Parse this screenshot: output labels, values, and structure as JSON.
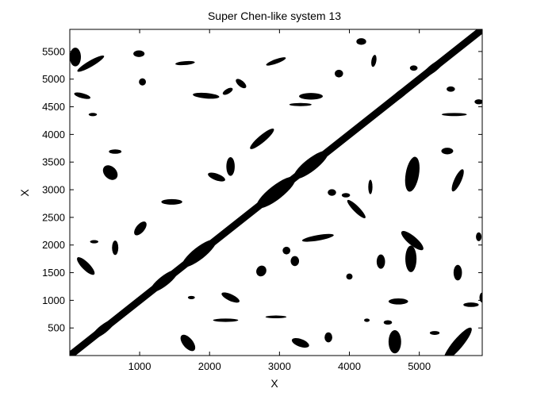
{
  "chart_data": {
    "type": "recurrence-plot",
    "title": "Super Chen-like system 13",
    "xlabel": "X",
    "ylabel": "X",
    "xlim": [
      1,
      5900
    ],
    "ylim": [
      1,
      5900
    ],
    "xticks": [
      1000,
      2000,
      3000,
      4000,
      5000
    ],
    "yticks": [
      500,
      1000,
      1500,
      2000,
      2500,
      3000,
      3500,
      4000,
      4500,
      5000,
      5500
    ],
    "colors": {
      "background": "#ffffff",
      "recurrence": "#000000",
      "axes": "#000000"
    },
    "diagonal_nodes": [
      [
        0,
        0,
        55
      ],
      [
        480,
        480,
        140
      ],
      [
        1350,
        1350,
        165
      ],
      [
        1850,
        1850,
        200
      ],
      [
        2950,
        2950,
        230
      ],
      [
        3450,
        3450,
        205
      ],
      [
        4200,
        4200,
        95
      ],
      [
        4480,
        4480,
        85
      ],
      [
        4720,
        4720,
        120
      ],
      [
        5200,
        5200,
        130
      ],
      [
        5800,
        5800,
        70
      ]
    ],
    "blobs": [
      [
        300,
        5280,
        220,
        55,
        -30
      ],
      [
        80,
        5400,
        80,
        170,
        0
      ],
      [
        180,
        4700,
        120,
        45,
        15
      ],
      [
        990,
        5460,
        80,
        60,
        0
      ],
      [
        1040,
        4950,
        50,
        65,
        0
      ],
      [
        1650,
        5290,
        140,
        35,
        -5
      ],
      [
        1950,
        4700,
        190,
        50,
        5
      ],
      [
        2450,
        4920,
        90,
        55,
        40
      ],
      [
        2260,
        4780,
        80,
        45,
        -30
      ],
      [
        2950,
        5320,
        150,
        40,
        -20
      ],
      [
        3450,
        4690,
        170,
        60,
        0
      ],
      [
        3300,
        4540,
        160,
        28,
        0
      ],
      [
        2750,
        3920,
        220,
        65,
        -40
      ],
      [
        4170,
        5680,
        70,
        60,
        0
      ],
      [
        4350,
        5330,
        35,
        110,
        10
      ],
      [
        3850,
        5100,
        60,
        70,
        0
      ],
      [
        4920,
        5200,
        55,
        48,
        0
      ],
      [
        5450,
        4820,
        60,
        48,
        0
      ],
      [
        5850,
        4590,
        60,
        45,
        0
      ],
      [
        5500,
        4360,
        180,
        28,
        0
      ],
      [
        5400,
        3700,
        85,
        60,
        0
      ],
      [
        4900,
        3280,
        95,
        320,
        10
      ],
      [
        5550,
        3170,
        50,
        220,
        25
      ],
      [
        4300,
        3050,
        30,
        130,
        0
      ],
      [
        3750,
        2950,
        60,
        60,
        0
      ],
      [
        4100,
        2650,
        180,
        55,
        45
      ],
      [
        3950,
        2900,
        60,
        40,
        0
      ],
      [
        3550,
        2130,
        230,
        50,
        -10
      ],
      [
        3100,
        1900,
        55,
        70,
        0
      ],
      [
        3220,
        1710,
        60,
        90,
        0
      ],
      [
        2740,
        1530,
        70,
        100,
        30
      ],
      [
        4450,
        1700,
        60,
        130,
        0
      ],
      [
        4000,
        1430,
        45,
        55,
        0
      ],
      [
        4900,
        2080,
        200,
        80,
        40
      ],
      [
        4880,
        1750,
        80,
        240,
        0
      ],
      [
        5550,
        1500,
        60,
        140,
        0
      ],
      [
        5850,
        2150,
        40,
        80,
        0
      ],
      [
        2300,
        3420,
        60,
        170,
        0
      ],
      [
        2100,
        3230,
        130,
        60,
        20
      ],
      [
        1460,
        2780,
        150,
        50,
        0
      ],
      [
        1010,
        2300,
        60,
        150,
        40
      ],
      [
        650,
        1950,
        45,
        130,
        0
      ],
      [
        580,
        3310,
        120,
        110,
        45
      ],
      [
        650,
        3690,
        90,
        40,
        0
      ],
      [
        350,
        2060,
        60,
        30,
        0
      ],
      [
        230,
        1620,
        170,
        70,
        45
      ],
      [
        1740,
        1050,
        50,
        30,
        0
      ],
      [
        2300,
        1050,
        140,
        60,
        25
      ],
      [
        2950,
        700,
        150,
        25,
        0
      ],
      [
        2230,
        640,
        180,
        30,
        0
      ],
      [
        1690,
        230,
        140,
        90,
        50
      ],
      [
        3300,
        230,
        130,
        70,
        20
      ],
      [
        3700,
        330,
        55,
        90,
        0
      ],
      [
        4700,
        980,
        140,
        55,
        0
      ],
      [
        4550,
        600,
        60,
        40,
        0
      ],
      [
        4650,
        250,
        90,
        210,
        0
      ],
      [
        5550,
        210,
        300,
        90,
        -50
      ],
      [
        5740,
        920,
        110,
        40,
        0
      ],
      [
        5220,
        410,
        70,
        35,
        0
      ],
      [
        4250,
        640,
        40,
        30,
        0
      ],
      [
        5900,
        1050,
        40,
        90,
        0
      ],
      [
        330,
        4360,
        60,
        30,
        0
      ]
    ]
  }
}
